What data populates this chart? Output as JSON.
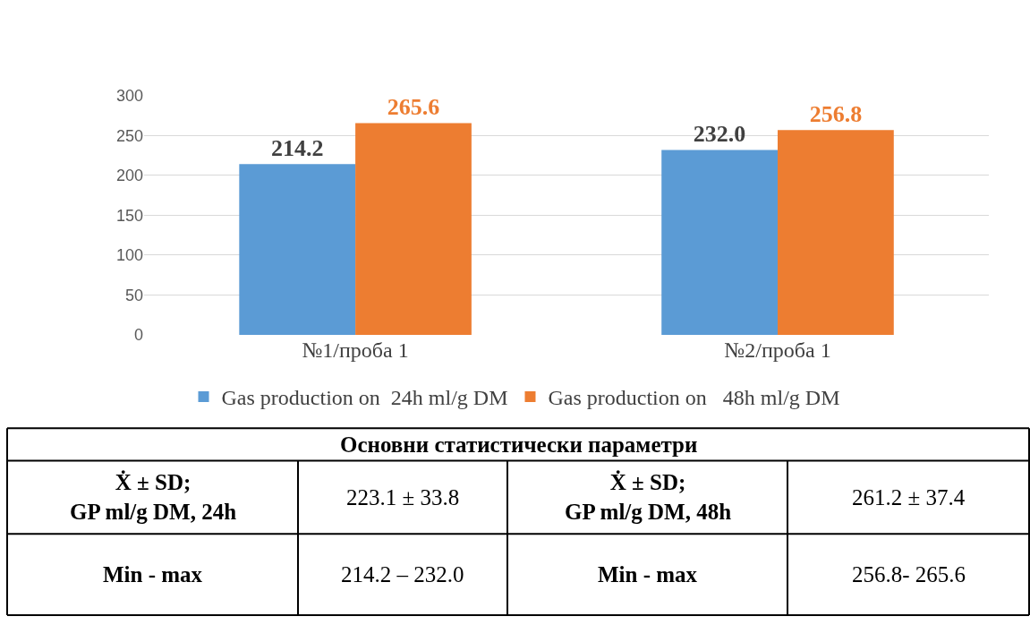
{
  "chart_data": {
    "type": "bar",
    "categories": [
      "№1/проба 1",
      "№2/проба 1"
    ],
    "series": [
      {
        "name": "Gas production on  24h ml/g DM",
        "color": "#5b9bd5",
        "values": [
          214.2,
          232.0
        ],
        "value_labels": [
          "214.2",
          "232.0"
        ]
      },
      {
        "name": "Gas production on   48h ml/g DM",
        "color": "#ed7d31",
        "values": [
          265.6,
          256.8
        ],
        "value_labels": [
          "265.6",
          "256.8"
        ]
      }
    ],
    "ylim": [
      0,
      300
    ],
    "yticks": [
      0,
      50,
      100,
      150,
      200,
      250,
      300
    ],
    "grid": "y",
    "legend": "bottom",
    "annotations": [
      "Основни статистически параметри",
      "Ẋ ± SD;\nGP ml/g DM, 24h",
      "223.1 ± 33.8",
      "Ẋ ± SD;\nGP ml/g DM, 48h",
      "261.2 ± 37.4",
      "Min - max",
      "214.2 – 232.0",
      "Min - max",
      "256.8- 265.6"
    ]
  }
}
